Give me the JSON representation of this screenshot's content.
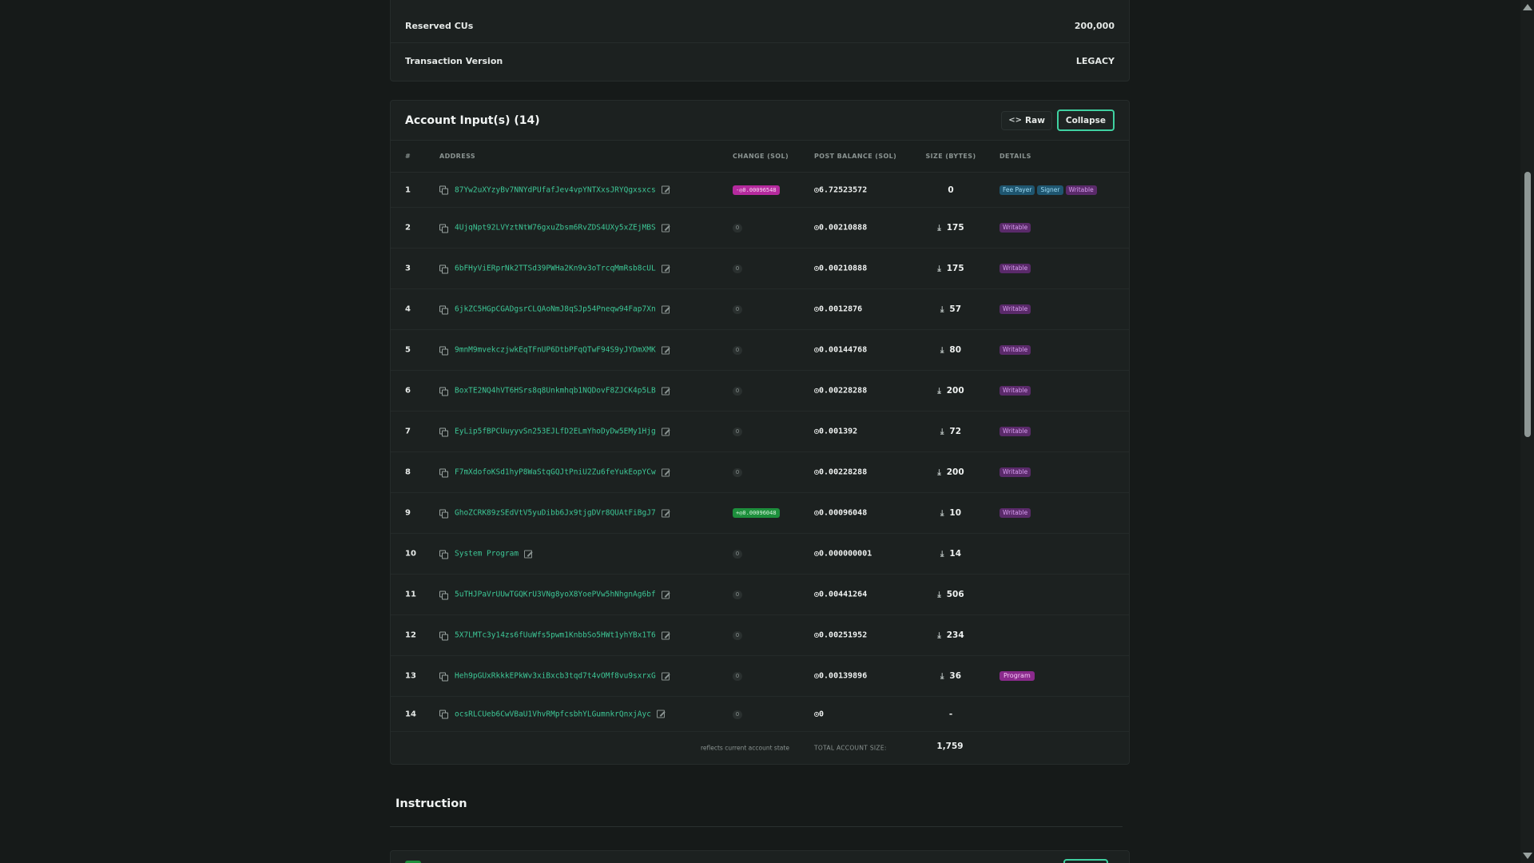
{
  "summary": {
    "reserved_cus_label": "Reserved CUs",
    "reserved_cus_value": "200,000",
    "tx_version_label": "Transaction Version",
    "tx_version_value": "LEGACY"
  },
  "accounts": {
    "title": "Account Input(s) (14)",
    "raw_label": "Raw",
    "collapse_label": "Collapse",
    "columns": {
      "num": "#",
      "address": "ADDRESS",
      "change": "CHANGE (SOL)",
      "post_balance": "POST BALANCE (SOL)",
      "size": "SIZE (BYTES)",
      "details": "DETAILS"
    },
    "rows": [
      {
        "num": "1",
        "address": "87Yw2uXYzyBv7NNYdPUfafJev4vpYNTXxsJRYQgxsxcs",
        "change": "-◎0.00096548",
        "change_type": "neg",
        "post": "◎6.72523572",
        "size": "0",
        "size_icon": false,
        "badges": [
          {
            "label": "Fee Payer",
            "type": "fee"
          },
          {
            "label": "Signer",
            "type": "signer"
          },
          {
            "label": "Writable",
            "type": "writable"
          }
        ]
      },
      {
        "num": "2",
        "address": "4UjqNpt92LVYztNtW76gxuZbsm6RvZDS4UXy5xZEjMBS",
        "change": "0",
        "change_type": "zero",
        "post": "◎0.00210888",
        "size": "175",
        "size_icon": true,
        "badges": [
          {
            "label": "Writable",
            "type": "writable"
          }
        ]
      },
      {
        "num": "3",
        "address": "6bFHyViERprNk2TTSd39PWHa2Kn9v3oTrcqMmRsb8cUL",
        "change": "0",
        "change_type": "zero",
        "post": "◎0.00210888",
        "size": "175",
        "size_icon": true,
        "badges": [
          {
            "label": "Writable",
            "type": "writable"
          }
        ]
      },
      {
        "num": "4",
        "address": "6jkZC5HGpCGADgsrCLQAoNmJ8qSJp54Pneqw94Fap7Xn",
        "change": "0",
        "change_type": "zero",
        "post": "◎0.0012876",
        "size": "57",
        "size_icon": true,
        "badges": [
          {
            "label": "Writable",
            "type": "writable"
          }
        ]
      },
      {
        "num": "5",
        "address": "9mnM9mvekczjwkEqTFnUP6DtbPFqQTwF94S9yJYDmXMK",
        "change": "0",
        "change_type": "zero",
        "post": "◎0.00144768",
        "size": "80",
        "size_icon": true,
        "badges": [
          {
            "label": "Writable",
            "type": "writable"
          }
        ]
      },
      {
        "num": "6",
        "address": "BoxTE2NQ4hVT6HSrs8q8Unkmhqb1NQDovF8ZJCK4p5LB",
        "change": "0",
        "change_type": "zero",
        "post": "◎0.00228288",
        "size": "200",
        "size_icon": true,
        "badges": [
          {
            "label": "Writable",
            "type": "writable"
          }
        ]
      },
      {
        "num": "7",
        "address": "EyLip5fBPCUuyyvSn253EJLfD2ELmYhoDyDw5EMy1Hjg",
        "change": "0",
        "change_type": "zero",
        "post": "◎0.001392",
        "size": "72",
        "size_icon": true,
        "badges": [
          {
            "label": "Writable",
            "type": "writable"
          }
        ]
      },
      {
        "num": "8",
        "address": "F7mXdofoKSd1hyP8WaStqGQJtPniU2Zu6feYukEopYCw",
        "change": "0",
        "change_type": "zero",
        "post": "◎0.00228288",
        "size": "200",
        "size_icon": true,
        "badges": [
          {
            "label": "Writable",
            "type": "writable"
          }
        ]
      },
      {
        "num": "9",
        "address": "GhoZCRK89zSEdVtV5yuDibb6Jx9tjgDVr8QUAtFiBgJ7",
        "change": "+◎0.00096048",
        "change_type": "pos",
        "post": "◎0.00096048",
        "size": "10",
        "size_icon": true,
        "badges": [
          {
            "label": "Writable",
            "type": "writable"
          }
        ]
      },
      {
        "num": "10",
        "address": "System Program",
        "change": "0",
        "change_type": "zero",
        "post": "◎0.000000001",
        "size": "14",
        "size_icon": true,
        "badges": []
      },
      {
        "num": "11",
        "address": "5uTHJPaVrUUwTGQKrU3VNg8yoX8YoePVw5hNhgnAg6bf",
        "change": "0",
        "change_type": "zero",
        "post": "◎0.00441264",
        "size": "506",
        "size_icon": true,
        "badges": []
      },
      {
        "num": "12",
        "address": "5X7LMTc3y14zs6fUuWfs5pwm1KnbbSo5HWt1yhYBx1T6",
        "change": "0",
        "change_type": "zero",
        "post": "◎0.00251952",
        "size": "234",
        "size_icon": true,
        "badges": []
      },
      {
        "num": "13",
        "address": "Heh9pGUxRkkkEPkWv3xiBxcb3tqd7t4vOMf8vu9sxrxG",
        "change": "0",
        "change_type": "zero",
        "post": "◎0.00139896",
        "size": "36",
        "size_icon": true,
        "badges": [
          {
            "label": "Program",
            "type": "program"
          }
        ]
      },
      {
        "num": "14",
        "address": "ocsRLCUeb6CwVBaU1VhvRMpfcsbhYLGumnkrQnxjAyc",
        "change": "0",
        "change_type": "zero",
        "post": "◎0",
        "size": "-",
        "size_icon": false,
        "badges": []
      }
    ],
    "footer": {
      "note": "reflects current account state",
      "total_label": "TOTAL ACCOUNT SIZE:",
      "total_value": "1,759"
    }
  },
  "instruction": {
    "title": "Instruction"
  },
  "colors": {
    "accent": "#3fd1a1",
    "address": "#3dc796",
    "negative": "#b52a9e",
    "positive": "#1d8f3c"
  }
}
